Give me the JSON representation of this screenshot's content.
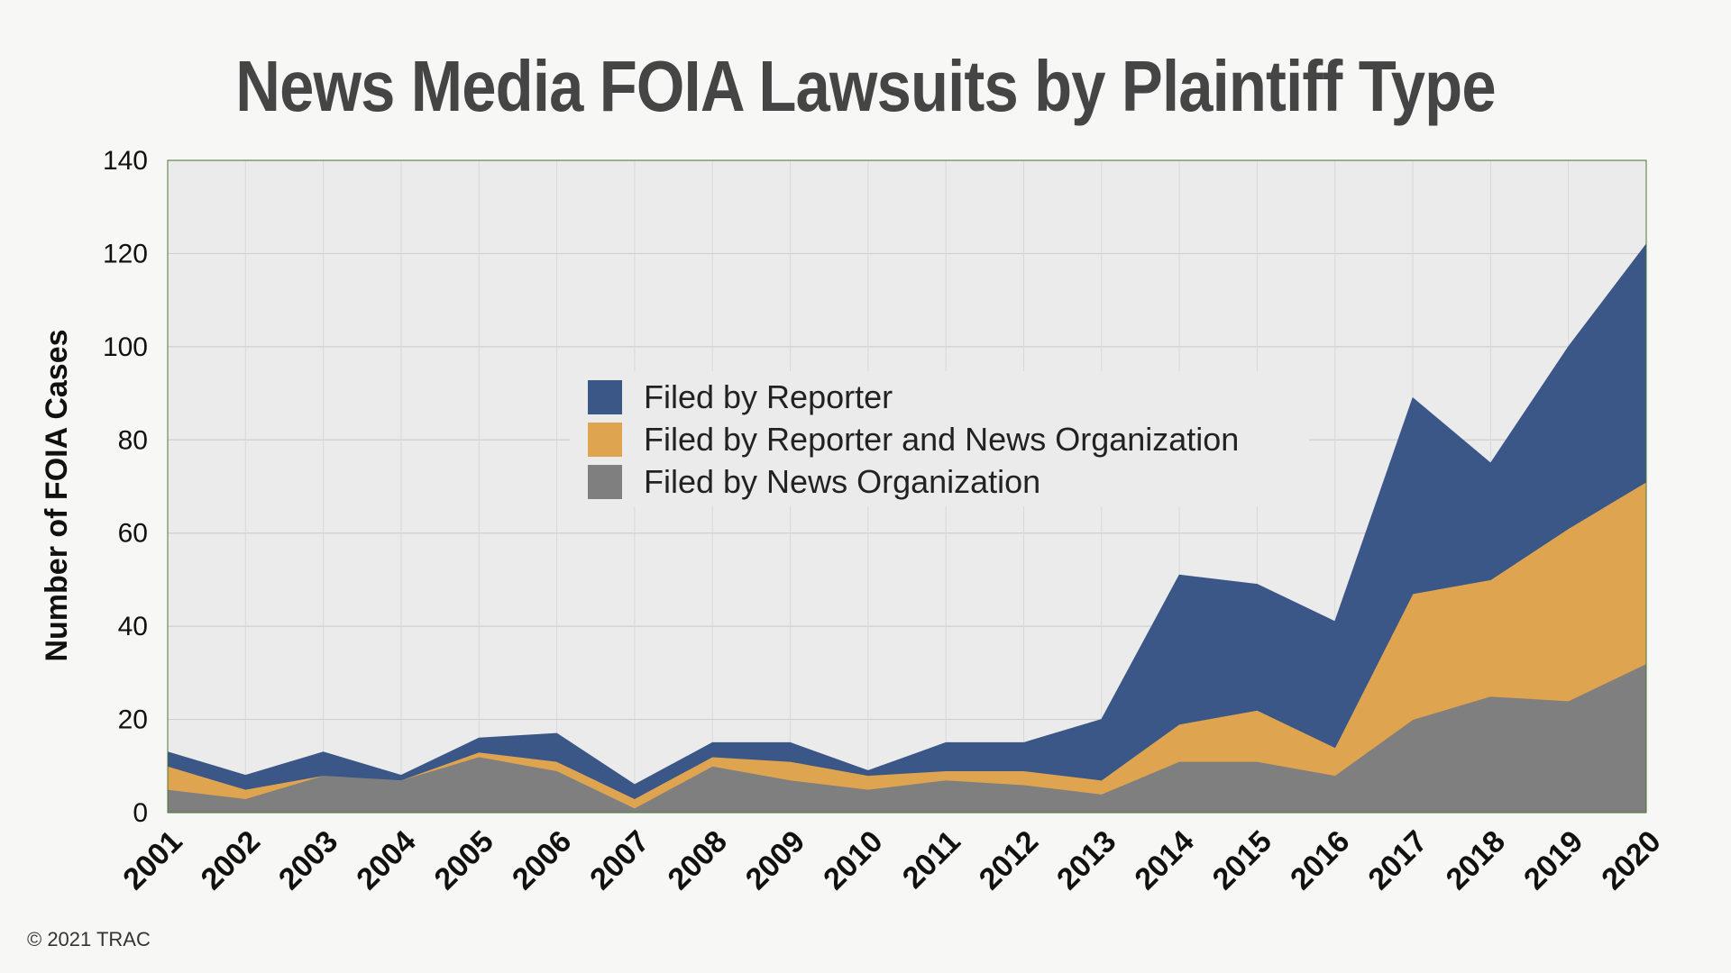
{
  "chart_data": {
    "type": "area",
    "stacked": true,
    "title": "News Media FOIA Lawsuits by Plaintiff Type",
    "ylabel": "Number of FOIA Cases",
    "xlabel": "",
    "ylim": [
      0,
      140
    ],
    "yticks": [
      0,
      20,
      40,
      60,
      80,
      100,
      120,
      140
    ],
    "grid": true,
    "legend_position": "center",
    "categories": [
      "2001",
      "2002",
      "2003",
      "2004",
      "2005",
      "2006",
      "2007",
      "2008",
      "2009",
      "2010",
      "2011",
      "2012",
      "2013",
      "2014",
      "2015",
      "2016",
      "2017",
      "2018",
      "2019",
      "2020"
    ],
    "series": [
      {
        "name": "Filed by News Organization",
        "color": "#7f7f7f",
        "values": [
          5,
          3,
          8,
          7,
          12,
          9,
          1,
          10,
          7,
          5,
          7,
          6,
          4,
          11,
          11,
          8,
          20,
          25,
          24,
          32
        ]
      },
      {
        "name": "Filed by Reporter and News Organization",
        "color": "#dfa44f",
        "values": [
          5,
          2,
          0,
          0,
          1,
          2,
          2,
          2,
          4,
          3,
          2,
          3,
          3,
          8,
          11,
          6,
          27,
          25,
          37,
          39
        ]
      },
      {
        "name": "Filed by Reporter",
        "color": "#3a5787",
        "values": [
          3,
          3,
          5,
          1,
          3,
          6,
          3,
          3,
          4,
          1,
          6,
          6,
          13,
          32,
          27,
          27,
          42,
          25,
          39,
          51
        ]
      }
    ],
    "legend_order": [
      "Filed by Reporter",
      "Filed by Reporter and News Organization",
      "Filed by News Organization"
    ]
  },
  "footer": {
    "copyright": "© 2021 TRAC"
  }
}
